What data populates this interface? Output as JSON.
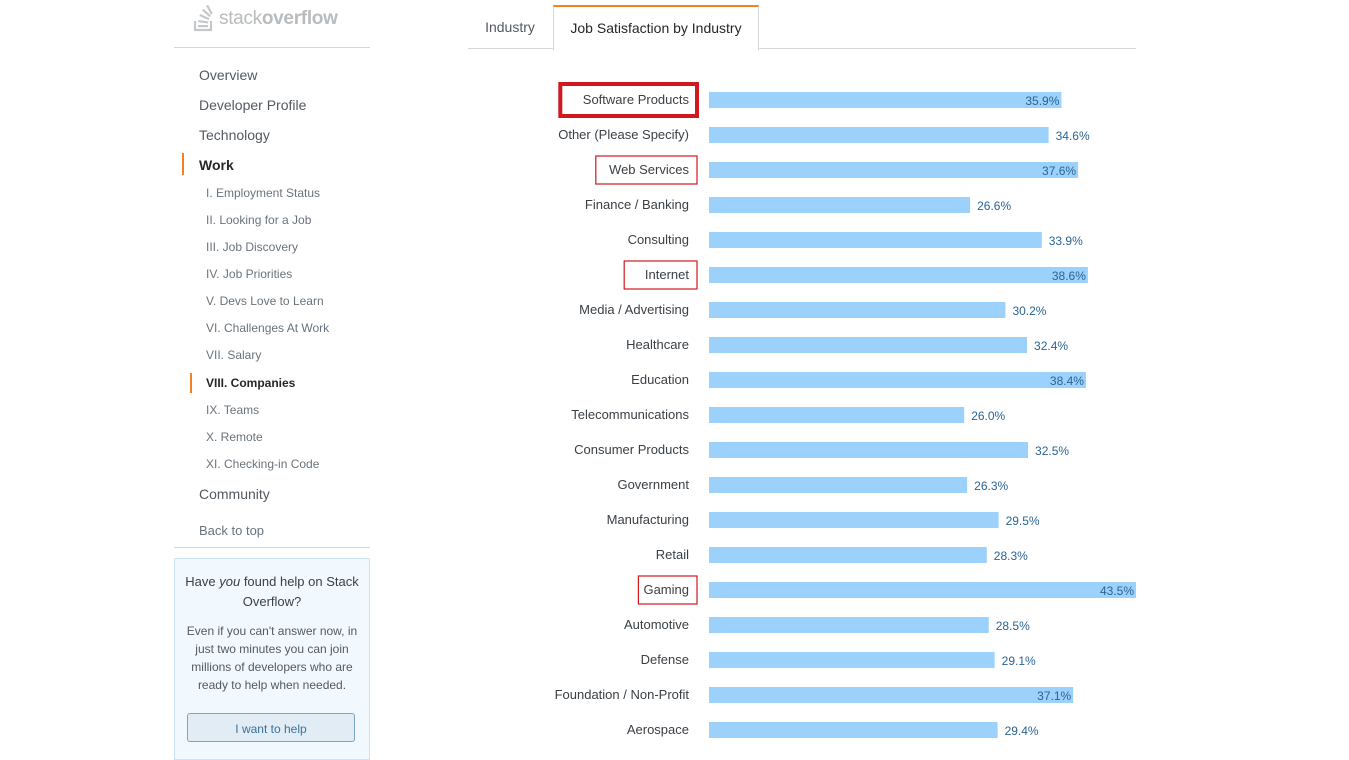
{
  "brand": {
    "name_light": "stack",
    "name_bold": "overflow",
    "icon": "stackoverflow-logo-icon"
  },
  "sidebar": {
    "nav": [
      {
        "label": "Overview"
      },
      {
        "label": "Developer Profile"
      },
      {
        "label": "Technology"
      },
      {
        "label": "Work",
        "active": true
      },
      {
        "label": "Community"
      }
    ],
    "work_sections": [
      {
        "label": "I. Employment Status"
      },
      {
        "label": "II. Looking for a Job"
      },
      {
        "label": "III. Job Discovery"
      },
      {
        "label": "IV. Job Priorities"
      },
      {
        "label": "V. Devs Love to Learn"
      },
      {
        "label": "VI. Challenges At Work"
      },
      {
        "label": "VII. Salary"
      },
      {
        "label": "VIII. Companies",
        "active": true
      },
      {
        "label": "IX. Teams"
      },
      {
        "label": "X. Remote"
      },
      {
        "label": "XI. Checking-in Code"
      }
    ],
    "back_to_top": "Back to top",
    "help_box": {
      "title_pre": "Have ",
      "title_em": "you",
      "title_post": " found help on Stack Overflow?",
      "body": "Even if you can't answer now, in just two minutes you can join millions of developers who are ready to help when needed.",
      "button": "I want to help"
    }
  },
  "tabs": [
    {
      "label": "Industry",
      "active": false
    },
    {
      "label": "Job Satisfaction by Industry",
      "active": true
    }
  ],
  "colors": {
    "accent": "#f48024",
    "bar": "#9cd1fb",
    "value_text": "#2a6496",
    "highlight_box": "#d0191f"
  },
  "chart_data": {
    "type": "bar",
    "orientation": "horizontal",
    "title": "Job Satisfaction by Industry",
    "categories": [
      "Software Products",
      "Other (Please Specify)",
      "Web Services",
      "Finance / Banking",
      "Consulting",
      "Internet",
      "Media / Advertising",
      "Healthcare",
      "Education",
      "Telecommunications",
      "Consumer Products",
      "Government",
      "Manufacturing",
      "Retail",
      "Gaming",
      "Automotive",
      "Defense",
      "Foundation / Non-Profit",
      "Aerospace"
    ],
    "values": [
      35.9,
      34.6,
      37.6,
      26.6,
      33.9,
      38.6,
      30.2,
      32.4,
      38.4,
      26.0,
      32.5,
      26.3,
      29.5,
      28.3,
      43.5,
      28.5,
      29.1,
      37.1,
      29.4
    ],
    "value_labels": [
      "35.9%",
      "34.6%",
      "37.6%",
      "26.6%",
      "33.9%",
      "38.6%",
      "30.2%",
      "32.4%",
      "38.4%",
      "26.0%",
      "32.5%",
      "26.3%",
      "29.5%",
      "28.3%",
      "43.5%",
      "28.5%",
      "29.1%",
      "37.1%",
      "29.4%"
    ],
    "highlighted": [
      "Software Products",
      "Web Services",
      "Internet",
      "Gaming"
    ],
    "emphasized": "Software Products",
    "xlim": [
      0,
      43.5
    ],
    "unit": "%"
  }
}
